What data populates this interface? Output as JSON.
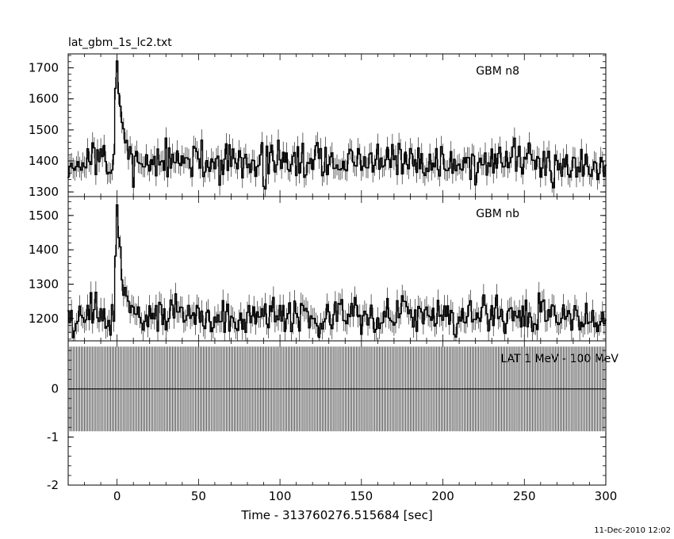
{
  "file_title": "lat_gbm_1s_lc2.txt",
  "timestamp": "11-Dec-2010 12:02",
  "chart_data": [
    {
      "type": "line",
      "panel": "top",
      "label": "GBM n8",
      "xlim": [
        -30,
        300
      ],
      "ylim": [
        1285,
        1745
      ],
      "yticks": [
        1300,
        1400,
        1500,
        1600,
        1700
      ],
      "baseline": 1395,
      "noise": 38,
      "peak": {
        "x": 0,
        "y": 1730
      },
      "seed": 11
    },
    {
      "type": "line",
      "panel": "middle",
      "label": "GBM nb",
      "xlim": [
        -30,
        300
      ],
      "ylim": [
        1135,
        1555
      ],
      "yticks": [
        1200,
        1300,
        1400,
        1500
      ],
      "baseline": 1210,
      "noise": 32,
      "peak": {
        "x": 0,
        "y": 1540
      },
      "seed": 29
    },
    {
      "type": "line",
      "panel": "bottom",
      "label": "LAT 1 MeV - 100 MeV",
      "xlim": [
        -30,
        300
      ],
      "ylim": [
        -2,
        1
      ],
      "yticks": [
        -2,
        -1,
        0
      ],
      "error_band": [
        -0.88,
        0.88
      ],
      "values_constant": 0,
      "xlabel": "Time - 313760276.515684 [sec]",
      "xticks": [
        0,
        50,
        100,
        150,
        200,
        250,
        300
      ]
    }
  ]
}
